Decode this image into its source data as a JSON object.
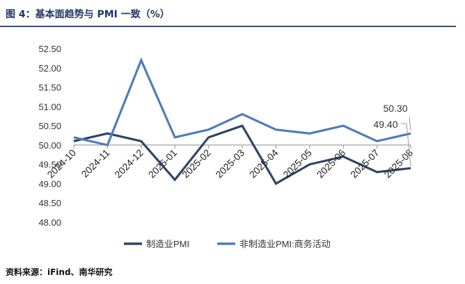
{
  "header": {
    "title": "图 4：基本面趋势与 PMI 一致（%）"
  },
  "footer": {
    "source": "资料来源：iFind、南华研究"
  },
  "colors": {
    "title": "#1f3864",
    "rule": "#2f4f7f"
  },
  "chart_data": {
    "type": "line",
    "title": "",
    "xlabel": "",
    "ylabel": "",
    "categories": [
      "2024-10",
      "2024-11",
      "2024-12",
      "2025-01",
      "2025-02",
      "2025-03",
      "2025-04",
      "2025-05",
      "2025-06",
      "2025-07",
      "2025-08"
    ],
    "ylim": [
      48.0,
      52.5
    ],
    "ytick_step": 0.5,
    "grid": false,
    "legend_position": "bottom",
    "series": [
      {
        "name": "制造业PMI",
        "color": "#2e4668",
        "values": [
          50.1,
          50.3,
          50.1,
          49.1,
          50.2,
          50.5,
          49.0,
          49.5,
          49.7,
          49.3,
          49.4
        ]
      },
      {
        "name": "非制造业PMI:商务活动",
        "color": "#4f7dba",
        "values": [
          50.2,
          50.0,
          52.2,
          50.2,
          50.4,
          50.8,
          50.4,
          50.3,
          50.5,
          50.1,
          50.3
        ]
      }
    ],
    "annotations": [
      {
        "series": 0,
        "index": 10,
        "text": "49.40"
      },
      {
        "series": 1,
        "index": 10,
        "text": "50.30"
      }
    ]
  }
}
